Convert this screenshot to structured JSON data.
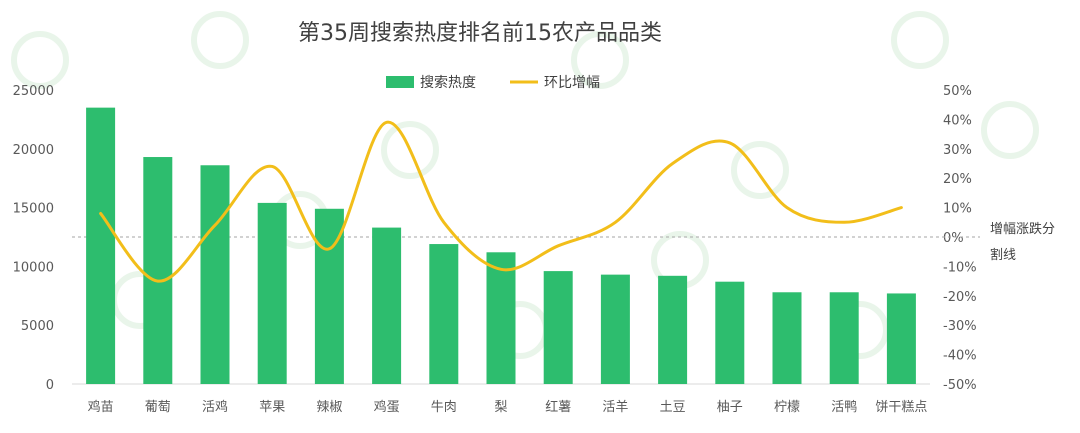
{
  "chart_data": {
    "type": "bar+line",
    "title": "第35周搜索热度排名前15农产品品类",
    "categories": [
      "鸡苗",
      "葡萄",
      "活鸡",
      "苹果",
      "辣椒",
      "鸡蛋",
      "牛肉",
      "梨",
      "红薯",
      "活羊",
      "土豆",
      "柚子",
      "柠檬",
      "活鸭",
      "饼干糕点"
    ],
    "series": [
      {
        "name": "搜索热度",
        "type": "bar",
        "axis": "left",
        "color": "#2dbd6e",
        "values": [
          23500,
          19300,
          18600,
          15400,
          14900,
          13300,
          11900,
          11200,
          9600,
          9300,
          9200,
          8700,
          7800,
          7800,
          7700
        ]
      },
      {
        "name": "环比增幅",
        "type": "line",
        "axis": "right",
        "color": "#f2be1a",
        "values": [
          8,
          -15,
          4,
          24,
          -4,
          39,
          5,
          -11,
          -3,
          5,
          25,
          32,
          10,
          5,
          10
        ]
      }
    ],
    "left_axis": {
      "ylim": [
        0,
        25000
      ],
      "ticks": [
        0,
        5000,
        10000,
        15000,
        20000,
        25000
      ],
      "tick_labels": [
        "0",
        "5000",
        "10000",
        "15000",
        "20000",
        "25000"
      ]
    },
    "right_axis": {
      "ylim": [
        -50,
        50
      ],
      "ticks": [
        -50,
        -40,
        -30,
        -20,
        -10,
        0,
        10,
        20,
        30,
        40,
        50
      ],
      "tick_labels": [
        "-50%",
        "-40%",
        "-30%",
        "-20%",
        "-10%",
        "0%",
        "10%",
        "20%",
        "30%",
        "40%",
        "50%"
      ]
    },
    "reference_line": {
      "value": 0,
      "axis": "right",
      "style": "dashed"
    },
    "annotation": [
      "增幅涨跌分",
      "割线"
    ],
    "legend": {
      "position": "top",
      "entries": [
        "搜索热度",
        "环比增幅"
      ]
    },
    "grid": false
  }
}
